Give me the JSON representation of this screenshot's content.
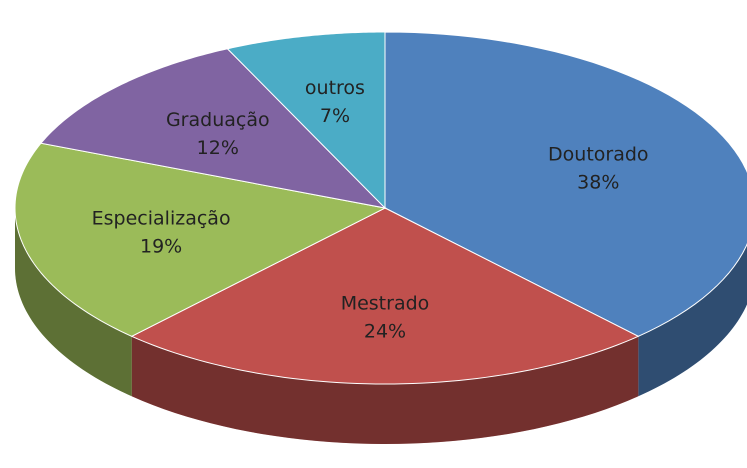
{
  "chart_data": {
    "type": "pie",
    "categories": [
      "Doutorado",
      "Mestrado",
      "Especialização",
      "Graduação",
      "outros"
    ],
    "values": [
      38,
      24,
      19,
      12,
      7
    ],
    "value_labels": [
      "38%",
      "24%",
      "19%",
      "12%",
      "7%"
    ],
    "colors": [
      "#4f81bd",
      "#c0504d",
      "#9bbb59",
      "#8064a2",
      "#4bacc6"
    ]
  }
}
